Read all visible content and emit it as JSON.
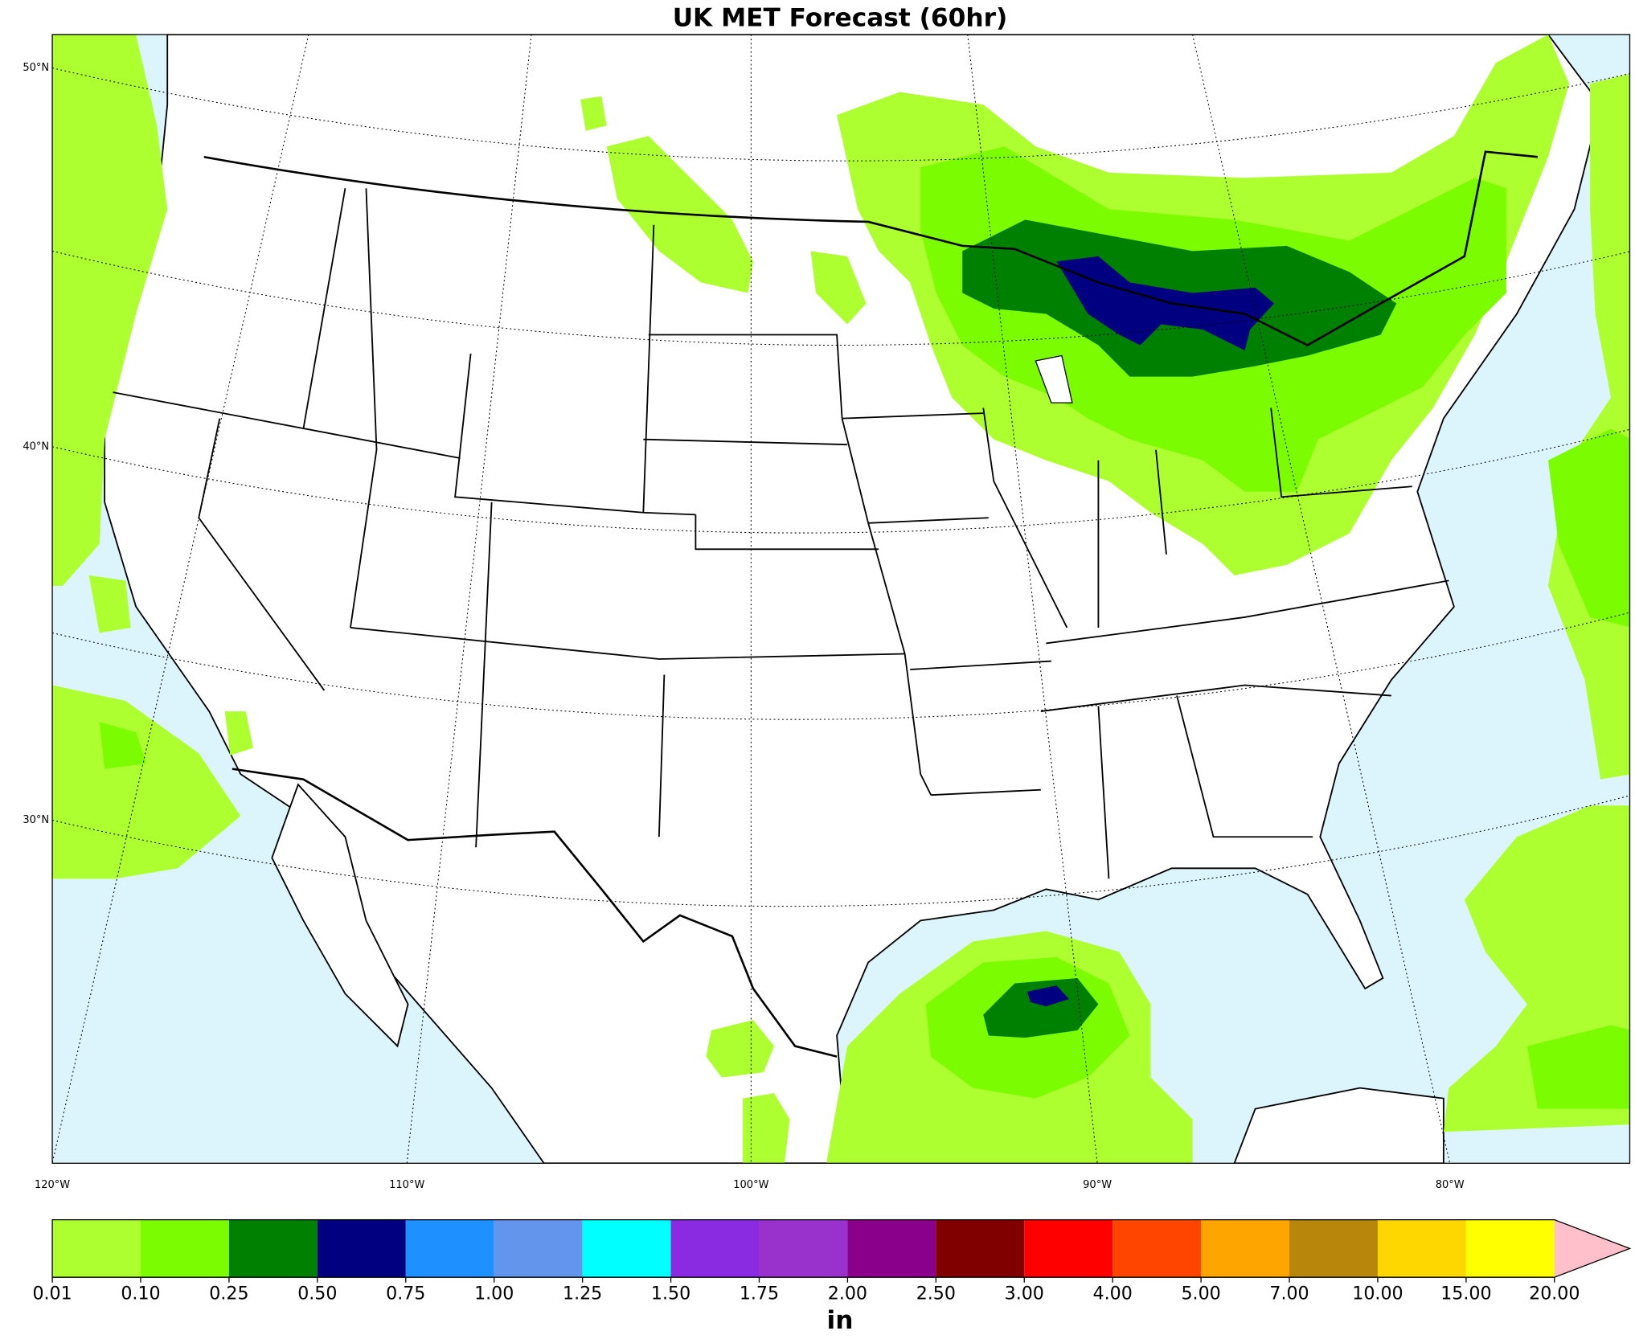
{
  "title": "UK MET Forecast (60hr)",
  "map": {
    "lat_labels": [
      "50°N",
      "40°N",
      "30°N"
    ],
    "lon_labels": [
      "120°W",
      "110°W",
      "100°W",
      "90°W",
      "80°W"
    ]
  },
  "colorbar": {
    "label": "in",
    "levels": [
      {
        "value": 0.01,
        "label": "0.01"
      },
      {
        "value": 0.1,
        "label": "0.10"
      },
      {
        "value": 0.25,
        "label": "0.25"
      },
      {
        "value": 0.5,
        "label": "0.50"
      },
      {
        "value": 0.75,
        "label": "0.75"
      },
      {
        "value": 1,
        "label": "1.00"
      },
      {
        "value": 1.25,
        "label": "1.25"
      },
      {
        "value": 1.5,
        "label": "1.50"
      },
      {
        "value": 1.75,
        "label": "1.75"
      },
      {
        "value": 2,
        "label": "2.00"
      },
      {
        "value": 2.5,
        "label": "2.50"
      },
      {
        "value": 3,
        "label": "3.00"
      },
      {
        "value": 4,
        "label": "4.00"
      },
      {
        "value": 5,
        "label": "5.00"
      },
      {
        "value": 7,
        "label": "7.00"
      },
      {
        "value": 10,
        "label": "10.00"
      },
      {
        "value": 15,
        "label": "15.00"
      },
      {
        "value": 20,
        "label": "20.00"
      }
    ],
    "colors": [
      "#adff2f",
      "#7cfc00",
      "#008000",
      "#000080",
      "#1e90ff",
      "#6495ed",
      "#00ffff",
      "#8a2be2",
      "#9932cc",
      "#8b008b",
      "#800000",
      "#ff0000",
      "#ff4500",
      "#ffa500",
      "#b8860b",
      "#ffd700",
      "#ffff00"
    ],
    "extend_color": "#ffc0cb"
  }
}
